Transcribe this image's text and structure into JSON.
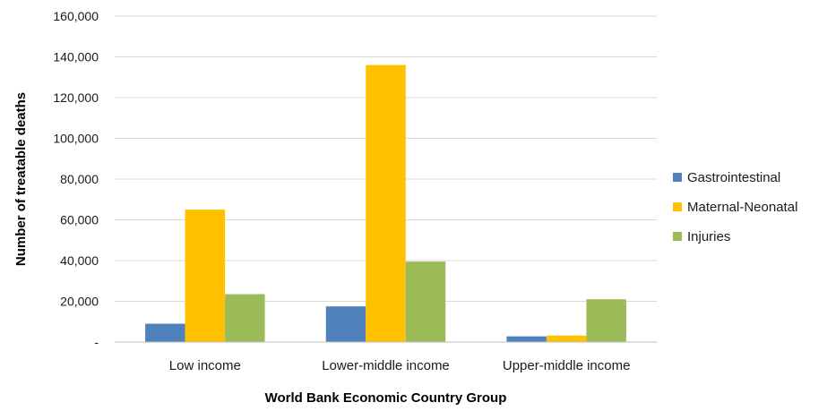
{
  "chart_data": {
    "type": "bar",
    "title": "",
    "xlabel": "World Bank Economic Country Group",
    "ylabel": "Number of treatable deaths",
    "categories": [
      "Low income",
      "Lower-middle income",
      "Upper-middle income"
    ],
    "series": [
      {
        "name": "Gastrointestinal",
        "color": "#4F81BD",
        "values": [
          9000,
          17500,
          2800
        ]
      },
      {
        "name": "Maternal-Neonatal",
        "color": "#FFC000",
        "values": [
          65000,
          136000,
          3200
        ]
      },
      {
        "name": "Injuries",
        "color": "#9BBB59",
        "values": [
          23500,
          39500,
          21000
        ]
      }
    ],
    "ylim": [
      0,
      160000
    ],
    "yticks": [
      0,
      20000,
      40000,
      60000,
      80000,
      100000,
      120000,
      140000,
      160000
    ],
    "ytick_labels": [
      "-",
      "20,000",
      "40,000",
      "60,000",
      "80,000",
      "100,000",
      "120,000",
      "140,000",
      "160,000"
    ],
    "grid": true,
    "legend_position": "right"
  }
}
